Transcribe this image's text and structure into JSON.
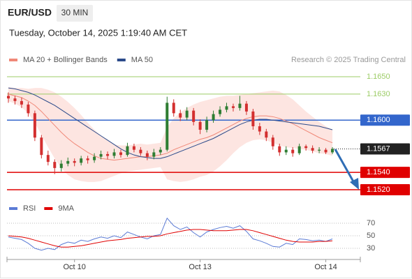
{
  "header": {
    "symbol": "EUR/USD",
    "timeframe": "30 MIN",
    "datetime": "Tuesday, October 14, 2025 1:19:40 AM CET"
  },
  "chart_data": [
    {
      "type": "candlestick",
      "attribution": "Research © 2025 Trading Central",
      "categories": [
        null,
        null,
        null,
        null,
        null,
        null,
        null,
        null,
        null,
        null,
        "Oct 10",
        null,
        null,
        null,
        null,
        null,
        null,
        null,
        null,
        null,
        null,
        null,
        null,
        null,
        null,
        null,
        null,
        null,
        null,
        "Oct 13",
        null,
        null,
        null,
        null,
        null,
        null,
        null,
        null,
        null,
        null,
        null,
        null,
        null,
        null,
        null,
        null,
        null,
        null,
        "Oct 14",
        null
      ],
      "up_color": "#2e7d32",
      "down_color": "#d32f2f",
      "candles": {
        "open": [
          1.1628,
          1.1625,
          1.1622,
          1.1618,
          1.1608,
          1.158,
          1.156,
          1.1552,
          1.1545,
          1.155,
          1.1553,
          1.1551,
          1.1556,
          1.1554,
          1.1558,
          1.1561,
          1.1559,
          1.1563,
          1.156,
          1.157,
          1.1566,
          1.1562,
          1.1558,
          1.1563,
          1.1566,
          1.162,
          1.1608,
          1.1603,
          1.1611,
          1.1598,
          1.1589,
          1.16,
          1.1607,
          1.1612,
          1.1616,
          1.1614,
          1.1619,
          1.161,
          1.1593,
          1.1587,
          1.158,
          1.157,
          1.1563,
          1.1566,
          1.1562,
          1.157,
          1.1568,
          1.1565,
          1.1566,
          1.1563
        ],
        "high": [
          1.1632,
          1.1628,
          1.1626,
          1.1621,
          1.1611,
          1.1583,
          1.1565,
          1.1555,
          1.1554,
          1.1557,
          1.1556,
          1.1559,
          1.1559,
          1.1562,
          1.1565,
          1.1564,
          1.1567,
          1.1566,
          1.1574,
          1.1573,
          1.1569,
          1.1565,
          1.1567,
          1.1569,
          1.1627,
          1.1624,
          1.1612,
          1.1615,
          1.1614,
          1.1601,
          1.1604,
          1.1611,
          1.1616,
          1.162,
          1.1619,
          1.1628,
          1.1622,
          1.1613,
          1.1597,
          1.159,
          1.1583,
          1.1573,
          1.157,
          1.1569,
          1.1573,
          1.1572,
          1.1571,
          1.1569,
          1.1568,
          1.1569
        ],
        "low": [
          1.162,
          1.1618,
          1.1614,
          1.1604,
          1.1576,
          1.1556,
          1.1548,
          1.1538,
          1.1541,
          1.1547,
          1.1547,
          1.1548,
          1.155,
          1.1551,
          1.1555,
          1.1555,
          1.1556,
          1.1557,
          1.1558,
          1.1563,
          1.1559,
          1.1554,
          1.1555,
          1.156,
          1.1564,
          1.1604,
          1.1599,
          1.16,
          1.1594,
          1.1584,
          1.1586,
          1.1597,
          1.1604,
          1.1609,
          1.161,
          1.1611,
          1.1606,
          1.1589,
          1.1583,
          1.1576,
          1.1566,
          1.1559,
          1.156,
          1.1558,
          1.156,
          1.1565,
          1.1562,
          1.1562,
          1.1561,
          1.1561
        ],
        "close": [
          1.1625,
          1.1622,
          1.1618,
          1.1608,
          1.158,
          1.156,
          1.1552,
          1.1545,
          1.155,
          1.1553,
          1.1551,
          1.1556,
          1.1554,
          1.1558,
          1.1561,
          1.1559,
          1.1563,
          1.156,
          1.157,
          1.1566,
          1.1562,
          1.1558,
          1.1563,
          1.1566,
          1.162,
          1.1608,
          1.1603,
          1.1611,
          1.1598,
          1.1589,
          1.16,
          1.1607,
          1.1612,
          1.1616,
          1.1614,
          1.1619,
          1.161,
          1.1593,
          1.1587,
          1.158,
          1.157,
          1.1563,
          1.1566,
          1.1562,
          1.157,
          1.1568,
          1.1565,
          1.1566,
          1.1563,
          1.1567
        ]
      },
      "lines": [
        {
          "name": "MA 20 + Bollinger Bands",
          "color": "#f08878",
          "band_color": "#fde0dc",
          "values": [
            1.163,
            1.1628,
            1.1626,
            1.1622,
            1.1617,
            1.161,
            1.1602,
            1.1594,
            1.1586,
            1.1579,
            1.1573,
            1.1568,
            1.1563,
            1.1559,
            1.1556,
            1.1555,
            1.1554,
            1.1555,
            1.1556,
            1.1557,
            1.1558,
            1.1558,
            1.1559,
            1.156,
            1.1562,
            1.1566,
            1.1569,
            1.1572,
            1.1575,
            1.1578,
            1.158,
            1.1583,
            1.1587,
            1.1591,
            1.1595,
            1.1599,
            1.1602,
            1.1604,
            1.1605,
            1.1605,
            1.1604,
            1.1602,
            1.1599,
            1.1596,
            1.1592,
            1.1588,
            1.1584,
            1.158,
            1.1577,
            1.1574
          ],
          "band_upper": [
            1.1638,
            1.1637,
            1.1637,
            1.1636,
            1.1637,
            1.1637,
            1.1635,
            1.1632,
            1.1627,
            1.1621,
            1.1614,
            1.1606,
            1.1597,
            1.1589,
            1.1582,
            1.1577,
            1.1572,
            1.1571,
            1.1571,
            1.1572,
            1.1573,
            1.1572,
            1.1573,
            1.1574,
            1.1592,
            1.1602,
            1.1609,
            1.1614,
            1.1618,
            1.1621,
            1.1623,
            1.1625,
            1.1627,
            1.1628,
            1.1628,
            1.1629,
            1.163,
            1.1631,
            1.1632,
            1.1633,
            1.1634,
            1.1633,
            1.1629,
            1.1624,
            1.1617,
            1.161,
            1.1604,
            1.1598,
            1.1593,
            1.1589
          ],
          "band_lower": [
            1.1622,
            1.1619,
            1.1615,
            1.1608,
            1.1597,
            1.1583,
            1.1569,
            1.1556,
            1.1545,
            1.1537,
            1.1532,
            1.153,
            1.1529,
            1.1529,
            1.153,
            1.1533,
            1.1536,
            1.1539,
            1.1541,
            1.1542,
            1.1543,
            1.1544,
            1.1545,
            1.1546,
            1.1532,
            1.153,
            1.1529,
            1.153,
            1.1532,
            1.1535,
            1.1537,
            1.1541,
            1.1547,
            1.1554,
            1.1562,
            1.1569,
            1.1574,
            1.1577,
            1.1578,
            1.1577,
            1.1574,
            1.1571,
            1.1569,
            1.1568,
            1.1567,
            1.1566,
            1.1564,
            1.1562,
            1.1561,
            1.1559
          ]
        },
        {
          "name": "MA 50",
          "color": "#2b4a8a",
          "values": [
            1.1637,
            1.1636,
            1.1634,
            1.1632,
            1.1629,
            1.1625,
            1.1621,
            1.1617,
            1.1612,
            1.1607,
            1.1602,
            1.1597,
            1.1592,
            1.1587,
            1.1582,
            1.1577,
            1.1572,
            1.1567,
            1.1563,
            1.156,
            1.1558,
            1.1557,
            1.1556,
            1.1556,
            1.1558,
            1.1561,
            1.1564,
            1.1567,
            1.157,
            1.1573,
            1.1576,
            1.1579,
            1.1583,
            1.1587,
            1.1591,
            1.1595,
            1.1598,
            1.16,
            1.1601,
            1.1601,
            1.16,
            1.1599,
            1.1598,
            1.1597,
            1.1596,
            1.1595,
            1.1594,
            1.1593,
            1.1591,
            1.1589
          ]
        }
      ],
      "levels": [
        {
          "value": 1.165,
          "label": "1.1650",
          "color": "#9ccc65",
          "style": "plain"
        },
        {
          "value": 1.163,
          "label": "1.1630",
          "color": "#9ccc65",
          "style": "plain"
        },
        {
          "value": 1.16,
          "label": "1.1600",
          "color": "#3366cc",
          "style": "box"
        },
        {
          "value": 1.1567,
          "label": "1.1567",
          "color": "#222222",
          "style": "current"
        },
        {
          "value": 1.154,
          "label": "1.1540",
          "color": "#e00000",
          "style": "box"
        },
        {
          "value": 1.152,
          "label": "1.1520",
          "color": "#e00000",
          "style": "box"
        }
      ],
      "ylim": [
        1.151,
        1.1658
      ]
    },
    {
      "type": "line",
      "series": [
        {
          "name": "RSI",
          "color": "#5b7bd5",
          "values": [
            48,
            46,
            44,
            38,
            30,
            27,
            30,
            28,
            36,
            40,
            38,
            43,
            41,
            45,
            48,
            46,
            50,
            47,
            56,
            52,
            48,
            45,
            50,
            52,
            78,
            66,
            60,
            64,
            55,
            48,
            56,
            60,
            63,
            65,
            62,
            66,
            57,
            45,
            42,
            38,
            33,
            32,
            38,
            36,
            45,
            44,
            42,
            43,
            41,
            45
          ]
        },
        {
          "name": "9MA",
          "color": "#e00000",
          "values": [
            50,
            49,
            48,
            46,
            43,
            40,
            37,
            34,
            32,
            32,
            33,
            34,
            36,
            38,
            40,
            42,
            43,
            44,
            46,
            47,
            48,
            49,
            49,
            50,
            53,
            55,
            57,
            59,
            60,
            60,
            59,
            58,
            58,
            58,
            59,
            60,
            60,
            58,
            55,
            52,
            49,
            46,
            43,
            41,
            40,
            40,
            40,
            41,
            41,
            42
          ]
        }
      ],
      "ylim": [
        15,
        83
      ],
      "yticks": [
        70,
        50,
        30
      ],
      "grid": true
    }
  ]
}
